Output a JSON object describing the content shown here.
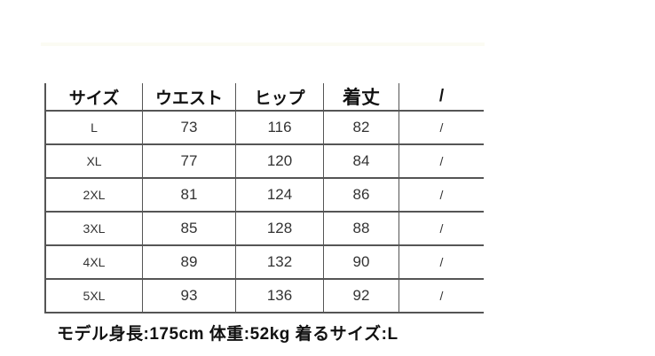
{
  "table": {
    "headers": [
      "サイズ",
      "ウエスト",
      "ヒップ",
      "着丈",
      "/"
    ],
    "rows": [
      [
        "L",
        "73",
        "116",
        "82",
        "/"
      ],
      [
        "XL",
        "77",
        "120",
        "84",
        "/"
      ],
      [
        "2XL",
        "81",
        "124",
        "86",
        "/"
      ],
      [
        "3XL",
        "85",
        "128",
        "88",
        "/"
      ],
      [
        "4XL",
        "89",
        "132",
        "90",
        "/"
      ],
      [
        "5XL",
        "93",
        "136",
        "92",
        "/"
      ]
    ]
  },
  "footer": {
    "model_info": "モデル身長:175cm 体重:52kg 着るサイズ:L"
  }
}
